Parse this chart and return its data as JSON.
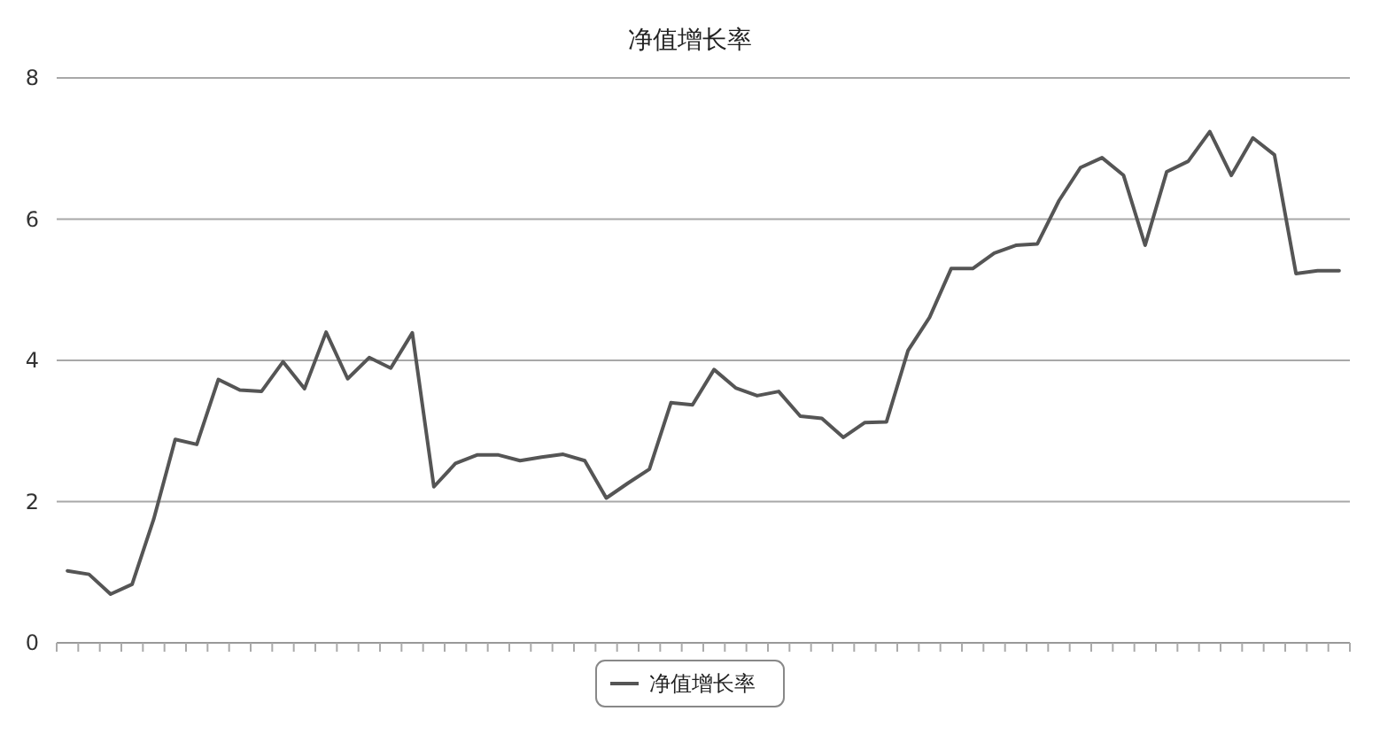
{
  "chart_data": {
    "type": "line",
    "title": "净值增长率",
    "categories": [
      null,
      null,
      null,
      null,
      null,
      null,
      null,
      null,
      null,
      null,
      null,
      null,
      null,
      null,
      null,
      null,
      null,
      null,
      null,
      null,
      null,
      null,
      null,
      null,
      null,
      null,
      null,
      null,
      null,
      null,
      null,
      null,
      null,
      null,
      null,
      null,
      null,
      null,
      null,
      null,
      null,
      null,
      null,
      null,
      null,
      null,
      null,
      null,
      null,
      null,
      null,
      null,
      null,
      null,
      null,
      null,
      null,
      null,
      null,
      null
    ],
    "series": [
      {
        "name": "净值增长率",
        "color": "#555555",
        "values": [
          1.02,
          0.97,
          0.69,
          0.83,
          1.75,
          2.88,
          2.81,
          3.73,
          3.58,
          3.56,
          3.98,
          3.6,
          4.4,
          3.74,
          4.04,
          3.89,
          4.39,
          2.21,
          2.54,
          2.66,
          2.66,
          2.58,
          2.63,
          2.67,
          2.58,
          2.05,
          2.26,
          2.46,
          3.4,
          3.37,
          3.87,
          3.61,
          3.5,
          3.56,
          3.21,
          3.18,
          2.91,
          3.12,
          3.13,
          4.14,
          4.61,
          5.3,
          5.3,
          5.52,
          5.63,
          5.65,
          6.26,
          6.73,
          6.87,
          6.62,
          5.63,
          6.67,
          6.82,
          7.24,
          6.62,
          7.15,
          6.91,
          5.23,
          5.27,
          5.27
        ]
      }
    ],
    "ylim": [
      0,
      8
    ],
    "yticks": [
      0,
      2,
      4,
      6,
      8
    ],
    "grid": "y",
    "legend": "bottom",
    "marker": "none",
    "line_style": "solid"
  }
}
